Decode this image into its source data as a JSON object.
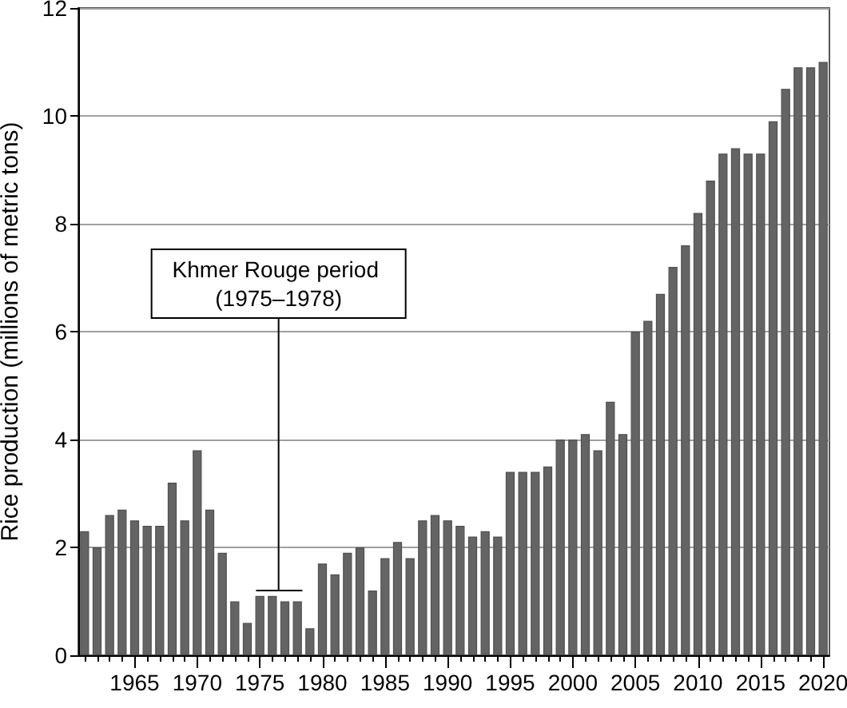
{
  "chart_data": {
    "type": "bar",
    "x": [
      1961,
      1962,
      1963,
      1964,
      1965,
      1966,
      1967,
      1968,
      1969,
      1970,
      1971,
      1972,
      1973,
      1974,
      1975,
      1976,
      1977,
      1978,
      1979,
      1980,
      1981,
      1982,
      1983,
      1984,
      1985,
      1986,
      1987,
      1988,
      1989,
      1990,
      1991,
      1992,
      1993,
      1994,
      1995,
      1996,
      1997,
      1998,
      1999,
      2000,
      2001,
      2002,
      2003,
      2004,
      2005,
      2006,
      2007,
      2008,
      2009,
      2010,
      2011,
      2012,
      2013,
      2014,
      2015,
      2016,
      2017,
      2018,
      2019,
      2020
    ],
    "series": [
      {
        "color": "#646464",
        "values": [
          2.3,
          2.0,
          2.6,
          2.7,
          2.5,
          2.4,
          2.4,
          3.2,
          2.5,
          3.8,
          2.7,
          1.9,
          1.0,
          0.6,
          1.1,
          1.1,
          1.0,
          1.0,
          0.5,
          1.7,
          1.5,
          1.9,
          2.0,
          1.2,
          1.8,
          2.1,
          1.8,
          2.5,
          2.6,
          2.5,
          2.4,
          2.2,
          2.3,
          2.2,
          3.4,
          3.4,
          3.4,
          3.5,
          4.0,
          4.0,
          4.1,
          3.8,
          4.7,
          4.1,
          6.0,
          6.2,
          6.7,
          7.2,
          7.6,
          8.2,
          8.8,
          9.3,
          9.4,
          9.3,
          9.3,
          9.9,
          10.5,
          10.9,
          10.9,
          11.0
        ]
      },
      {
        "type": "line",
        "color": "#000000",
        "x": [
          1974.7,
          1978.4
        ],
        "values": [
          1.2,
          1.2
        ]
      }
    ],
    "ylabel": "Rice production (millions of metric tons)",
    "xlim": [
      1960.5,
      2020.5
    ],
    "xticks": [
      {
        "value": 1961,
        "label": null
      },
      {
        "value": 1962,
        "label": null
      },
      {
        "value": 1963,
        "label": null
      },
      {
        "value": 1964,
        "label": null
      },
      1965,
      {
        "value": 1966,
        "label": null
      },
      {
        "value": 1967,
        "label": null
      },
      {
        "value": 1968,
        "label": null
      },
      {
        "value": 1969,
        "label": null
      },
      1970,
      {
        "value": 1971,
        "label": null
      },
      {
        "value": 1972,
        "label": null
      },
      {
        "value": 1973,
        "label": null
      },
      {
        "value": 1974,
        "label": null
      },
      1975,
      {
        "value": 1976,
        "label": null
      },
      {
        "value": 1977,
        "label": null
      },
      {
        "value": 1978,
        "label": null
      },
      {
        "value": 1979,
        "label": null
      },
      1980,
      {
        "value": 1981,
        "label": null
      },
      {
        "value": 1982,
        "label": null
      },
      {
        "value": 1983,
        "label": null
      },
      {
        "value": 1984,
        "label": null
      },
      1985,
      {
        "value": 1986,
        "label": null
      },
      {
        "value": 1987,
        "label": null
      },
      {
        "value": 1988,
        "label": null
      },
      {
        "value": 1989,
        "label": null
      },
      1990,
      {
        "value": 1991,
        "label": null
      },
      {
        "value": 1992,
        "label": null
      },
      {
        "value": 1993,
        "label": null
      },
      {
        "value": 1994,
        "label": null
      },
      1995,
      {
        "value": 1996,
        "label": null
      },
      {
        "value": 1997,
        "label": null
      },
      {
        "value": 1998,
        "label": null
      },
      {
        "value": 1999,
        "label": null
      },
      2000,
      {
        "value": 2001,
        "label": null
      },
      {
        "value": 2002,
        "label": null
      },
      {
        "value": 2003,
        "label": null
      },
      {
        "value": 2004,
        "label": null
      },
      2005,
      {
        "value": 2006,
        "label": null
      },
      {
        "value": 2007,
        "label": null
      },
      {
        "value": 2008,
        "label": null
      },
      {
        "value": 2009,
        "label": null
      },
      2010,
      {
        "value": 2011,
        "label": null
      },
      {
        "value": 2012,
        "label": null
      },
      {
        "value": 2013,
        "label": null
      },
      {
        "value": 2014,
        "label": null
      },
      2015,
      {
        "value": 2016,
        "label": null
      },
      {
        "value": 2017,
        "label": null
      },
      {
        "value": 2018,
        "label": null
      },
      {
        "value": 2019,
        "label": null
      },
      2020
    ],
    "ylim": [
      0,
      12
    ],
    "yticks": [
      0,
      2,
      4,
      6,
      8,
      10,
      12
    ],
    "grid": "y",
    "annotations": [
      {
        "text": "Khmer Rouge period (1975–1978)",
        "x": 1976.5,
        "y": 1.2
      }
    ]
  }
}
